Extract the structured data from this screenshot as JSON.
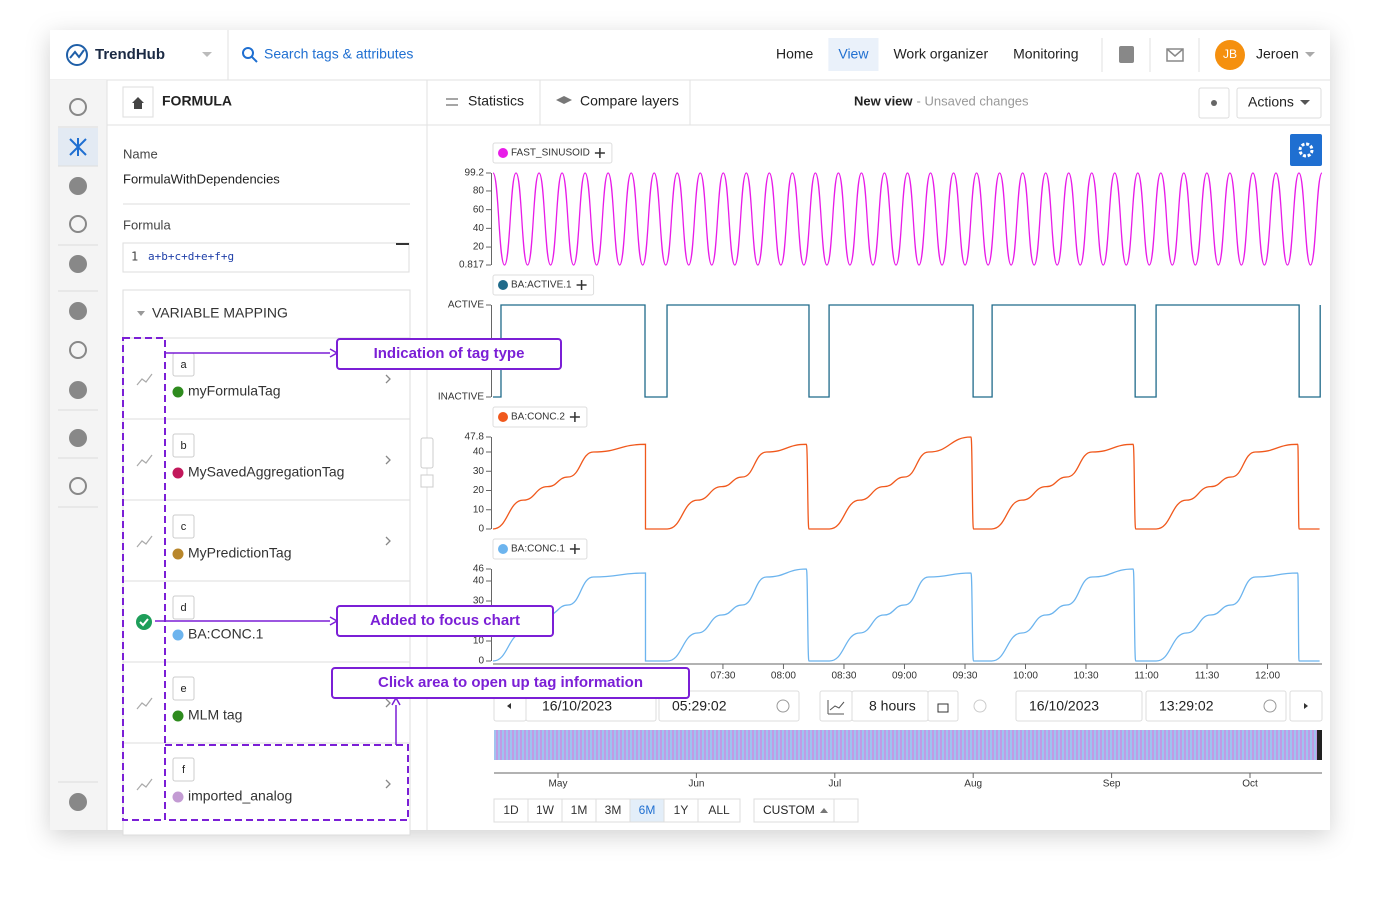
{
  "header": {
    "brand": "TrendHub",
    "search": "Search tags & attributes",
    "nav": [
      "Home",
      "View",
      "Work organizer",
      "Monitoring"
    ],
    "active_nav": "View",
    "user_initials": "JB",
    "user": "Jeroen"
  },
  "panel": {
    "title": "FORMULA",
    "name_label": "Name",
    "name": "FormulaWithDependencies",
    "formula_label": "Formula",
    "formula_line": "1",
    "formula": "a+b+c+d+e+f+g",
    "mapping_title": "VARIABLE MAPPING",
    "variables": [
      {
        "letter": "a",
        "tag": "myFormulaTag",
        "color": "#2e8b1e"
      },
      {
        "letter": "b",
        "tag": "MySavedAggregationTag",
        "color": "#c2185b"
      },
      {
        "letter": "c",
        "tag": "MyPredictionTag",
        "color": "#b8862b"
      },
      {
        "letter": "d",
        "tag": "BA:CONC.1",
        "color": "#6cb4ee"
      },
      {
        "letter": "e",
        "tag": "MLM tag",
        "color": "#2e8b1e"
      },
      {
        "letter": "f",
        "tag": "imported_analog",
        "color": "#c39bd3"
      }
    ]
  },
  "toolbar": {
    "statistics": "Statistics",
    "compare": "Compare layers",
    "view_name": "New view",
    "view_status": "- Unsaved changes",
    "actions": "Actions"
  },
  "chart_data": [
    {
      "type": "line",
      "series": [
        {
          "name": "FAST_SINUSOID",
          "color": "#e81ce8",
          "values": [
            99.2,
            0.817,
            99.2,
            0.817,
            99.2,
            0.817,
            99.2,
            0.817,
            99.2,
            0.817,
            99.2,
            0.817,
            99.2,
            0.817,
            99.2,
            0.817,
            99.2,
            0.817,
            99.2,
            0.817,
            99.2,
            0.817,
            99.2,
            0.817,
            99.2,
            0.817,
            99.2,
            0.817,
            99.2,
            0.817,
            99.2,
            0.817,
            99.2,
            0.817,
            99.2,
            0.817,
            99.2,
            0.817,
            99.2,
            0.817,
            99.2,
            0.817,
            99.2,
            0.817,
            99.2,
            0.817,
            99.2,
            0.817,
            99.2,
            0.817,
            99.2,
            0.817,
            99.2,
            0.817,
            99.2,
            0.817,
            99.2,
            0.817,
            99.2,
            0.817,
            99.2,
            0.817,
            99.2,
            0.817,
            99.2,
            0.817,
            99.2,
            0.817,
            99.2,
            0.817,
            99.2,
            0.817,
            99.2
          ]
        }
      ],
      "ylim": [
        0.817,
        99.2
      ],
      "yticks": [
        0.817,
        20,
        40,
        60,
        80,
        99.2
      ]
    },
    {
      "type": "line",
      "series": [
        {
          "name": "BA:ACTIVE.1",
          "color": "#1f6a8a",
          "x": [
            5.6,
            5.666,
            5.666,
            6.856,
            6.856,
            7.038,
            7.038,
            8.211,
            8.211,
            8.377,
            8.377,
            9.567,
            9.567,
            9.724,
            9.724,
            10.906,
            10.906,
            11.079,
            11.079,
            12.261,
            12.261,
            12.435,
            12.435
          ],
          "values": [
            0,
            0,
            1,
            1,
            0,
            0,
            1,
            1,
            0,
            0,
            1,
            1,
            0,
            0,
            1,
            1,
            0,
            0,
            1,
            1,
            0,
            0,
            1
          ]
        }
      ],
      "xlim": [
        5.6,
        12.45
      ],
      "ylim": [
        0,
        1
      ],
      "yticks": [
        {
          "value": 0,
          "label": "INACTIVE"
        },
        {
          "value": 1,
          "label": "ACTIVE"
        }
      ]
    },
    {
      "type": "line",
      "series": [
        {
          "name": "BA:CONC.2",
          "color": "#f0581c",
          "x": [
            5.6,
            5.85,
            6.05,
            6.22,
            6.43,
            6.86,
            6.86,
            7.04,
            7.29,
            7.49,
            7.66,
            7.86,
            8.19,
            8.21,
            8.38,
            8.63,
            8.83,
            9.0,
            9.2,
            9.55,
            9.57,
            9.72,
            9.97,
            10.17,
            10.34,
            10.55,
            10.89,
            10.91,
            11.08,
            11.33,
            11.53,
            11.7,
            11.9,
            12.25,
            12.26,
            12.43
          ],
          "values": [
            0,
            15,
            22,
            27,
            40,
            44,
            0,
            0,
            15,
            22,
            27,
            40,
            44,
            0,
            0,
            15,
            22,
            27,
            40,
            47.8,
            0,
            0,
            15,
            22,
            27,
            40,
            44,
            0,
            0,
            15,
            22,
            27,
            40,
            44,
            0,
            0
          ]
        }
      ],
      "xlim": [
        5.6,
        12.45
      ],
      "ylim": [
        0,
        47.8
      ],
      "yticks": [
        0,
        10,
        20,
        30,
        40,
        47.8
      ]
    },
    {
      "type": "line",
      "series": [
        {
          "name": "BA:CONC.1",
          "color": "#6cb4ee",
          "x": [
            5.6,
            5.85,
            6.05,
            6.22,
            6.43,
            6.86,
            6.86,
            7.04,
            7.29,
            7.49,
            7.66,
            7.86,
            8.19,
            8.21,
            8.38,
            8.63,
            8.83,
            9.0,
            9.2,
            9.55,
            9.57,
            9.72,
            9.97,
            10.17,
            10.34,
            10.55,
            10.89,
            10.91,
            11.08,
            11.33,
            11.53,
            11.7,
            11.9,
            12.25,
            12.26,
            12.43
          ],
          "values": [
            0,
            14,
            23,
            28,
            42,
            44,
            0,
            0,
            14,
            23,
            28,
            42,
            46,
            0,
            0,
            14,
            23,
            28,
            42,
            44,
            0,
            0,
            14,
            23,
            28,
            42,
            46,
            0,
            0,
            14,
            23,
            28,
            42,
            44,
            0,
            0
          ]
        }
      ],
      "xlim": [
        5.6,
        12.45
      ],
      "ylim": [
        0,
        46
      ],
      "yticks": [
        0,
        10,
        30,
        40,
        46
      ],
      "xticks": [
        {
          "value": 7.5,
          "label": "07:30"
        },
        {
          "value": 8,
          "label": "08:00"
        },
        {
          "value": 8.5,
          "label": "08:30"
        },
        {
          "value": 9,
          "label": "09:00"
        },
        {
          "value": 9.5,
          "label": "09:30"
        },
        {
          "value": 10,
          "label": "10:00"
        },
        {
          "value": 10.5,
          "label": "10:30"
        },
        {
          "value": 11,
          "label": "11:00"
        },
        {
          "value": 11.5,
          "label": "11:30"
        },
        {
          "value": 12,
          "label": "12:00"
        }
      ]
    }
  ],
  "time_controls": {
    "start_date": "16/10/2023",
    "start_time": "05:29:02",
    "duration": "8 hours",
    "end_date": "16/10/2023",
    "end_time": "13:29:02",
    "ranges": [
      "1D",
      "1W",
      "1M",
      "3M",
      "6M",
      "1Y",
      "ALL"
    ],
    "selected_range": "6M",
    "custom": "CUSTOM",
    "months": [
      "May",
      "Jun",
      "Jul",
      "Aug",
      "Sep",
      "Oct"
    ]
  },
  "annotations": [
    "Indication of tag type",
    "Added to focus chart",
    "Click area to open up tag information"
  ]
}
